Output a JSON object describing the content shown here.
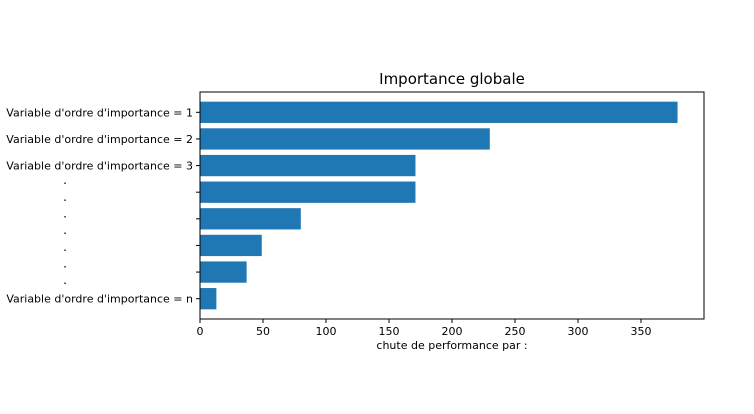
{
  "chart_data": {
    "type": "bar",
    "orientation": "horizontal",
    "title": "Importance globale",
    "xlabel": "chute de performance par :",
    "ylabel": "",
    "xlim": [
      0,
      400
    ],
    "xticks": [
      0,
      50,
      100,
      150,
      200,
      250,
      300,
      350
    ],
    "bar_color": "#1f77b4",
    "grid": false,
    "categories": [
      "Variable d'ordre d'importance = 1",
      "Variable d'ordre d'importance = 2",
      "Variable d'ordre d'importance = 3",
      "",
      "",
      "",
      "",
      "Variable d'ordre d'importance = n"
    ],
    "values": [
      379,
      230,
      171,
      171,
      80,
      49,
      37,
      13
    ],
    "ellipsis_dots": [
      ".",
      ".",
      ".",
      ".",
      ".",
      ".",
      "."
    ]
  }
}
